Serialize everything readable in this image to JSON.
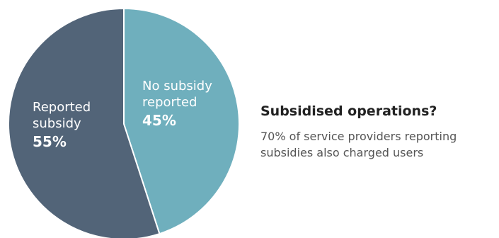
{
  "chart_data": {
    "type": "pie",
    "slices": [
      {
        "label_lines": [
          "No subsidy",
          "reported"
        ],
        "value": 45,
        "value_label": "45%",
        "color": "#6fafbd"
      },
      {
        "label_lines": [
          "Reported",
          "subsidy"
        ],
        "value": 55,
        "value_label": "55%",
        "color": "#526478"
      }
    ],
    "start": "12 o'clock",
    "direction": "clockwise"
  },
  "side_panel": {
    "title": "Subsidised operations?",
    "note": "70% of service providers reporting subsidies also charged users"
  },
  "colors": {
    "slice_border": "#ffffff",
    "slice_text": "#ffffff",
    "title_text": "#222222",
    "note_text": "#555555"
  }
}
